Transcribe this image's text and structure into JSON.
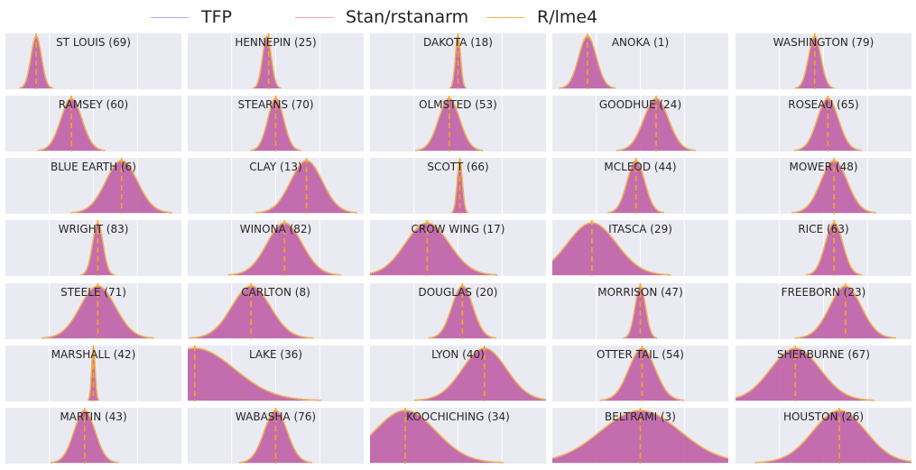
{
  "legend": {
    "tfp": "TFP",
    "stan": "Stan/rstanarm",
    "lme4": "R/lme4"
  },
  "colors": {
    "tfp": "#a9a9f2",
    "stan": "#f2a4b4",
    "lme4": "#f0b44c",
    "fill": "#c062a8",
    "dashed": "#f2a81d",
    "panel_bg": "#eaeaf2",
    "grid": "#ffffff"
  },
  "chart_data": {
    "type": "area",
    "rows": 7,
    "cols": 5,
    "x_range": [
      -1,
      1
    ],
    "x_gridlines": [
      -0.5,
      0,
      0.5
    ],
    "panels": [
      {
        "label": "ST LOUIS (69)",
        "mu": -0.65,
        "sd": 0.06,
        "line": -0.65
      },
      {
        "label": "HENNEPIN (25)",
        "mu": -0.1,
        "sd": 0.05,
        "line": -0.08
      },
      {
        "label": "DAKOTA (18)",
        "mu": 0.0,
        "sd": 0.03,
        "line": 0.0
      },
      {
        "label": "ANOKA (1)",
        "mu": -0.6,
        "sd": 0.1,
        "line": -0.6
      },
      {
        "label": "WASHINGTON (79)",
        "mu": -0.1,
        "sd": 0.07,
        "line": -0.1
      },
      {
        "label": "RAMSEY (60)",
        "mu": -0.25,
        "sd": 0.12,
        "line": -0.25
      },
      {
        "label": "STEARNS (70)",
        "mu": 0.0,
        "sd": 0.09,
        "line": 0.0
      },
      {
        "label": "OLMSTED (53)",
        "mu": -0.1,
        "sd": 0.12,
        "line": -0.1
      },
      {
        "label": "GOODHUE (24)",
        "mu": 0.18,
        "sd": 0.14,
        "line": 0.18
      },
      {
        "label": "ROSEAU (65)",
        "mu": 0.05,
        "sd": 0.12,
        "line": 0.05
      },
      {
        "label": "BLUE EARTH (6)",
        "mu": 0.32,
        "sd": 0.18,
        "line": 0.32
      },
      {
        "label": "CLAY (13)",
        "mu": 0.35,
        "sd": 0.18,
        "line": 0.35
      },
      {
        "label": "SCOTT (66)",
        "mu": 0.02,
        "sd": 0.03,
        "line": 0.02
      },
      {
        "label": "MCLEOD (44)",
        "mu": -0.05,
        "sd": 0.1,
        "line": -0.05
      },
      {
        "label": "MOWER (48)",
        "mu": 0.12,
        "sd": 0.15,
        "line": 0.12
      },
      {
        "label": "WRIGHT (83)",
        "mu": 0.05,
        "sd": 0.06,
        "line": 0.05
      },
      {
        "label": "WINONA (82)",
        "mu": 0.1,
        "sd": 0.2,
        "line": 0.1
      },
      {
        "label": "CROW WING (17)",
        "mu": -0.35,
        "sd": 0.25,
        "line": -0.35
      },
      {
        "label": "ITASCA (29)",
        "mu": -0.55,
        "sd": 0.28,
        "line": -0.55
      },
      {
        "label": "RICE (63)",
        "mu": 0.12,
        "sd": 0.1,
        "line": 0.12
      },
      {
        "label": "STEELE (71)",
        "mu": 0.05,
        "sd": 0.2,
        "line": 0.05
      },
      {
        "label": "CARLTON (8)",
        "mu": -0.28,
        "sd": 0.22,
        "line": -0.28
      },
      {
        "label": "DOUGLAS (20)",
        "mu": 0.05,
        "sd": 0.12,
        "line": 0.05
      },
      {
        "label": "MORRISON (47)",
        "mu": 0.0,
        "sd": 0.06,
        "line": 0.0
      },
      {
        "label": "FREEBORN (23)",
        "mu": 0.25,
        "sd": 0.18,
        "line": 0.25
      },
      {
        "label": "MARSHALL (42)",
        "mu": 0.0,
        "sd": 0.02,
        "line": 0.0
      },
      {
        "label": "LAKE (36)",
        "mu": -0.92,
        "sd": 0.45,
        "line": -0.92
      },
      {
        "label": "LYON (40)",
        "mu": 0.3,
        "sd": 0.25,
        "line": 0.3
      },
      {
        "label": "OTTER TAIL (54)",
        "mu": 0.02,
        "sd": 0.15,
        "line": 0.02
      },
      {
        "label": "SHERBURNE (67)",
        "mu": -0.32,
        "sd": 0.28,
        "line": -0.32
      },
      {
        "label": "MARTIN (43)",
        "mu": -0.1,
        "sd": 0.12,
        "line": -0.1
      },
      {
        "label": "WABASHA (76)",
        "mu": 0.0,
        "sd": 0.13,
        "line": 0.0
      },
      {
        "label": "KOOCHICHING (34)",
        "mu": -0.6,
        "sd": 0.35,
        "line": -0.6
      },
      {
        "label": "BELTRAMI (3)",
        "mu": 0.0,
        "sd": 0.45,
        "line": 0.0
      },
      {
        "label": "HOUSTON (26)",
        "mu": 0.18,
        "sd": 0.3,
        "line": 0.18
      }
    ]
  }
}
